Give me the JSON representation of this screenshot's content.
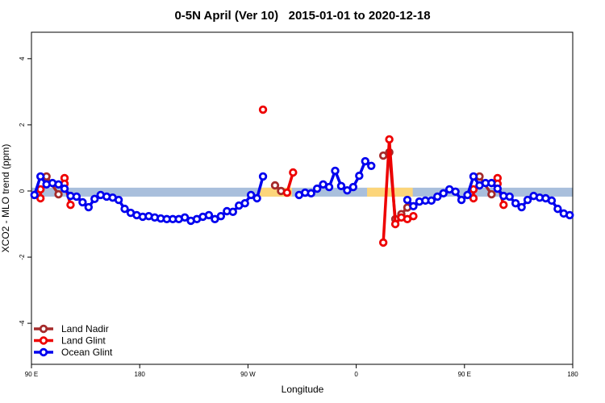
{
  "chart_data": {
    "type": "line",
    "title": "0-5N April (Ver 10)   2015-01-01 to 2020-12-18",
    "x_label": "Longitude",
    "y_label": "XCO2 - MLO trend (ppm)",
    "xlim": [
      90,
      540
    ],
    "ylim": [
      -5.24,
      4.8
    ],
    "xticks": [
      {
        "value": 90,
        "label": "90 E"
      },
      180,
      {
        "value": 270,
        "label": "90 W"
      },
      {
        "value": 360,
        "label": "0"
      },
      {
        "value": 450,
        "label": "90 E"
      },
      {
        "value": 540,
        "label": "180"
      }
    ],
    "yticks": [
      4,
      2,
      0,
      -2,
      -4
    ],
    "legend": "bottom-left",
    "band": {
      "ylim": [
        -0.17,
        0.1
      ],
      "segments": [
        {
          "x": [
            90,
            540
          ],
          "color": "#a9bfdc"
        },
        {
          "x": [
            279.8,
            306.6
          ],
          "color": "#fcd57a"
        },
        {
          "x": [
            369,
            407
          ],
          "color": "#fcd57a"
        }
      ]
    },
    "series": [
      {
        "name": "Land Nadir",
        "color": "#a52a2a",
        "x": [
          102.5,
          112.5,
          200,
          292.5,
          297.5,
          340,
          382.5,
          387.5,
          392.5,
          397.5,
          402.5,
          430,
          462.5,
          472.5
        ],
        "values": [
          0.44,
          -0.1,
          null,
          0.17,
          0.0,
          null,
          1.07,
          1.17,
          -0.85,
          -0.7,
          -0.5,
          null,
          0.44,
          -0.1
        ]
      },
      {
        "name": "Land Glint",
        "color": "#ee0000",
        "x": [
          97.5,
          97.5,
          107.5,
          117.5,
          117.5,
          122.5,
          200,
          282.5,
          290,
          302.5,
          307.5,
          345,
          382.5,
          387.5,
          392.5,
          397.5,
          402.5,
          407.5,
          430,
          457.5,
          457.5,
          467.5,
          477.5,
          477.5,
          482.5
        ],
        "values": [
          0.05,
          -0.22,
          null,
          0.39,
          0.22,
          -0.42,
          null,
          2.46,
          null,
          -0.05,
          0.56,
          null,
          -1.56,
          1.56,
          -1.0,
          -0.8,
          -0.85,
          -0.76,
          null,
          0.05,
          -0.22,
          null,
          0.39,
          0.22,
          -0.42
        ]
      },
      {
        "name": "Ocean Glint",
        "color": "#0000ee",
        "x": [
          92.5,
          97.5,
          102.5,
          107.5,
          112.5,
          117.5,
          122.5,
          127.5,
          132.5,
          137.5,
          142.5,
          147.5,
          152.5,
          157.5,
          162.5,
          167.5,
          172.5,
          177.5,
          182.5,
          187.5,
          192.5,
          197.5,
          202.5,
          207.5,
          212.5,
          217.5,
          222.5,
          227.5,
          232.5,
          237.5,
          242.5,
          247.5,
          252.5,
          257.5,
          262.5,
          267.5,
          272.5,
          277.5,
          282.5,
          287.5,
          312.5,
          317.5,
          322.5,
          327.5,
          332.5,
          337.5,
          342.5,
          347.5,
          352.5,
          357.5,
          362.5,
          367.5,
          372.5,
          377.5,
          402.5,
          407.5,
          412.5,
          417.5,
          422.5,
          427.5,
          432.5,
          437.5,
          442.5,
          447.5,
          452.5,
          457.5,
          462.5,
          467.5,
          472.5,
          477.5,
          482.5,
          487.5,
          492.5,
          497.5,
          502.5,
          507.5,
          512.5,
          517.5,
          522.5,
          527.5,
          532.5,
          537.5
        ],
        "values": [
          -0.12,
          0.44,
          0.2,
          0.24,
          0.2,
          0.07,
          -0.15,
          -0.17,
          -0.34,
          -0.49,
          -0.24,
          -0.12,
          -0.17,
          -0.2,
          -0.27,
          -0.54,
          -0.66,
          -0.73,
          -0.78,
          -0.76,
          -0.8,
          -0.83,
          -0.85,
          -0.85,
          -0.85,
          -0.8,
          -0.9,
          -0.85,
          -0.78,
          -0.73,
          -0.85,
          -0.76,
          -0.61,
          -0.63,
          -0.44,
          -0.37,
          -0.12,
          -0.22,
          0.44,
          null,
          -0.12,
          -0.05,
          -0.07,
          0.07,
          0.2,
          0.12,
          0.61,
          0.15,
          0.02,
          0.12,
          0.46,
          0.9,
          0.76,
          null,
          -0.27,
          -0.46,
          -0.32,
          -0.29,
          -0.29,
          -0.17,
          -0.07,
          0.05,
          -0.02,
          -0.27,
          -0.12,
          0.44,
          0.17,
          0.24,
          0.24,
          0.07,
          -0.15,
          -0.17,
          -0.37,
          -0.49,
          -0.27,
          -0.15,
          -0.2,
          -0.22,
          -0.29,
          -0.54,
          -0.68,
          -0.73
        ]
      }
    ]
  }
}
